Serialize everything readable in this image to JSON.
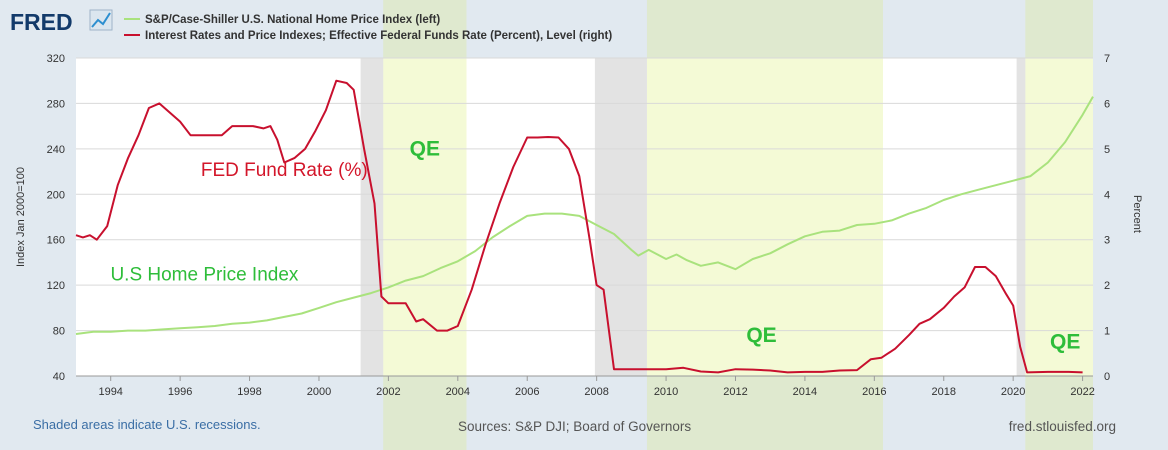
{
  "header": {
    "logo_text": "FRED",
    "legend": [
      {
        "label": "S&P/Case-Shiller U.S. National Home Price Index (left)",
        "color": "#a9e27d"
      },
      {
        "label": "Interest Rates and Price Indexes; Effective Federal Funds Rate (Percent), Level (right)",
        "color": "#c8102e"
      }
    ]
  },
  "footer": {
    "recession_note": "Shaded areas indicate U.S. recessions.",
    "sources": "Sources: S&P DJI; Board of Governors",
    "site": "fred.stlouisfed.org"
  },
  "colors": {
    "home_index": "#a9e27d",
    "fed_funds": "#c8102e",
    "qe_band": "#f4fad6",
    "qe_outer": "#dfe9cf",
    "outer_bg": "#e1e9f0",
    "recession": "#e3e3e3",
    "annotation_red": "#d3162a",
    "annotation_green": "#2ebd3a"
  },
  "chart_data": {
    "type": "line",
    "x_range": [
      1993,
      2022.3
    ],
    "y_left": {
      "label": "Index Jan 2000=100",
      "range": [
        40,
        320
      ],
      "ticks": [
        "40",
        "80",
        "120",
        "160",
        "200",
        "240",
        "280",
        "320"
      ]
    },
    "y_right": {
      "label": "Percent",
      "range": [
        0,
        7
      ],
      "ticks": [
        "0",
        "1",
        "2",
        "3",
        "4",
        "5",
        "6",
        "7"
      ]
    },
    "x_ticks": [
      {
        "value": 1994,
        "label": "1994"
      },
      {
        "value": 1996,
        "label": "1996"
      },
      {
        "value": 1998,
        "label": "1998"
      },
      {
        "value": 2000,
        "label": "2000"
      },
      {
        "value": 2002,
        "label": "2002"
      },
      {
        "value": 2004,
        "label": "2004"
      },
      {
        "value": 2006,
        "label": "2006"
      },
      {
        "value": 2008,
        "label": "2008"
      },
      {
        "value": 2010,
        "label": "2010"
      },
      {
        "value": 2012,
        "label": "2012"
      },
      {
        "value": 2014,
        "label": "2014"
      },
      {
        "value": 2016,
        "label": "2016"
      },
      {
        "value": 2018,
        "label": "2018"
      },
      {
        "value": 2020,
        "label": "2020"
      },
      {
        "value": 2022,
        "label": "2022"
      }
    ],
    "recessions": [
      [
        2001.2,
        2001.85
      ],
      [
        2007.95,
        2009.45
      ],
      [
        2020.1,
        2020.35
      ]
    ],
    "qe_periods": [
      [
        2001.85,
        2004.25
      ],
      [
        2009.45,
        2016.25
      ],
      [
        2020.35,
        2022.3
      ]
    ],
    "annotations": [
      {
        "text": "FED Fund Rate (%)",
        "x": 1999.0,
        "y_right": 4.4,
        "color": "#d3162a"
      },
      {
        "text": "U.S Home Price Index",
        "x": 1996.7,
        "y_right": 2.1,
        "color": "#2ebd3a"
      },
      {
        "text": "QE",
        "x": 2003.05,
        "y_right": 4.85,
        "color": "#2ebd3a"
      },
      {
        "text": "QE",
        "x": 2012.75,
        "y_right": 0.75,
        "color": "#2ebd3a"
      },
      {
        "text": "QE",
        "x": 2021.5,
        "y_right": 0.6,
        "color": "#2ebd3a"
      }
    ],
    "series": [
      {
        "name": "S&P/Case-Shiller U.S. National Home Price Index (left)",
        "axis": "left",
        "color": "#a9e27d",
        "x": [
          1993.0,
          1993.5,
          1994.0,
          1994.5,
          1995.0,
          1995.5,
          1996.0,
          1996.5,
          1997.0,
          1997.5,
          1998.0,
          1998.5,
          1999.0,
          1999.5,
          2000.0,
          2000.5,
          2001.0,
          2001.5,
          2002.0,
          2002.5,
          2003.0,
          2003.5,
          2004.0,
          2004.5,
          2005.0,
          2005.5,
          2006.0,
          2006.5,
          2007.0,
          2007.5,
          2008.0,
          2008.5,
          2009.0,
          2009.2,
          2009.5,
          2010.0,
          2010.3,
          2010.6,
          2011.0,
          2011.5,
          2012.0,
          2012.5,
          2013.0,
          2013.5,
          2014.0,
          2014.5,
          2015.0,
          2015.5,
          2016.0,
          2016.5,
          2017.0,
          2017.5,
          2018.0,
          2018.5,
          2019.0,
          2019.5,
          2020.0,
          2020.5,
          2021.0,
          2021.5,
          2022.0,
          2022.3
        ],
        "values": [
          77,
          79,
          79,
          80,
          80,
          81,
          82,
          83,
          84,
          86,
          87,
          89,
          92,
          95,
          100,
          105,
          109,
          113,
          118,
          124,
          128,
          135,
          141,
          150,
          162,
          172,
          181,
          183,
          183,
          181,
          173,
          165,
          151,
          146,
          151,
          143,
          147,
          142,
          137,
          140,
          134,
          143,
          148,
          156,
          163,
          167,
          168,
          173,
          174,
          177,
          183,
          188,
          195,
          200,
          204,
          208,
          212,
          216,
          228,
          246,
          270,
          286
        ]
      },
      {
        "name": "Interest Rates and Price Indexes; Effective Federal Funds Rate (Percent), Level (right)",
        "axis": "right",
        "color": "#c8102e",
        "x": [
          1993.0,
          1993.2,
          1993.4,
          1993.6,
          1993.9,
          1994.2,
          1994.5,
          1994.8,
          1995.1,
          1995.4,
          1995.7,
          1996.0,
          1996.3,
          1996.6,
          1996.9,
          1997.2,
          1997.5,
          1997.8,
          1998.1,
          1998.4,
          1998.6,
          1998.8,
          1999.0,
          1999.3,
          1999.6,
          1999.9,
          2000.2,
          2000.5,
          2000.8,
          2001.0,
          2001.3,
          2001.6,
          2001.8,
          2002.0,
          2002.5,
          2002.8,
          2003.0,
          2003.4,
          2003.7,
          2004.0,
          2004.4,
          2004.8,
          2005.2,
          2005.6,
          2006.0,
          2006.3,
          2006.6,
          2006.9,
          2007.2,
          2007.5,
          2007.8,
          2008.0,
          2008.2,
          2008.5,
          2008.8,
          2009.0,
          2009.5,
          2010.0,
          2010.5,
          2011.0,
          2011.5,
          2012.0,
          2012.5,
          2013.0,
          2013.5,
          2014.0,
          2014.5,
          2015.0,
          2015.5,
          2015.9,
          2016.2,
          2016.6,
          2017.0,
          2017.3,
          2017.6,
          2018.0,
          2018.3,
          2018.6,
          2018.9,
          2019.2,
          2019.5,
          2019.8,
          2020.0,
          2020.2,
          2020.4,
          2021.0,
          2021.6,
          2022.0
        ],
        "values": [
          3.1,
          3.05,
          3.1,
          3.0,
          3.3,
          4.2,
          4.8,
          5.3,
          5.9,
          6.0,
          5.8,
          5.6,
          5.3,
          5.3,
          5.3,
          5.3,
          5.5,
          5.5,
          5.5,
          5.45,
          5.5,
          5.2,
          4.7,
          4.8,
          5.0,
          5.4,
          5.85,
          6.5,
          6.45,
          6.3,
          5.0,
          3.8,
          1.75,
          1.6,
          1.6,
          1.2,
          1.25,
          1.0,
          1.0,
          1.1,
          1.9,
          2.9,
          3.8,
          4.6,
          5.25,
          5.25,
          5.26,
          5.25,
          5.0,
          4.4,
          3.0,
          2.0,
          1.9,
          0.15,
          0.15,
          0.15,
          0.15,
          0.15,
          0.18,
          0.1,
          0.08,
          0.15,
          0.14,
          0.12,
          0.08,
          0.09,
          0.09,
          0.12,
          0.13,
          0.37,
          0.4,
          0.6,
          0.9,
          1.15,
          1.25,
          1.5,
          1.75,
          1.95,
          2.4,
          2.4,
          2.2,
          1.8,
          1.55,
          0.65,
          0.08,
          0.09,
          0.09,
          0.08
        ]
      }
    ]
  }
}
